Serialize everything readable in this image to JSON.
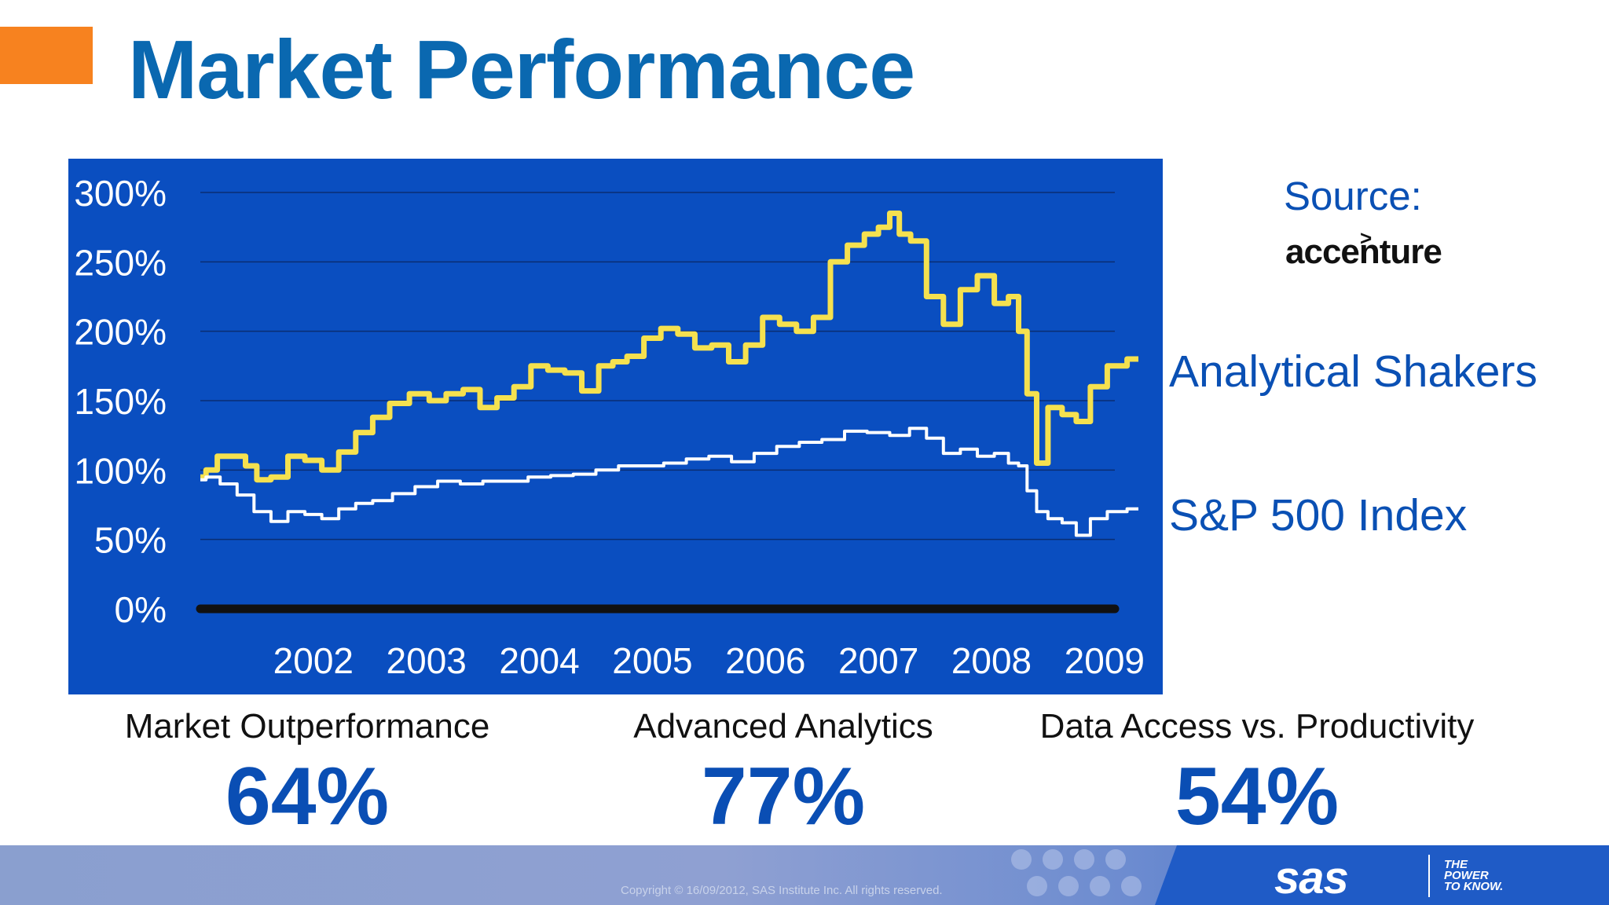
{
  "slide": {
    "title": "Market Performance",
    "source_label": "Source:",
    "source_logo": "accenture",
    "source_logo_mark": ">",
    "copyright": "Copyright © 16/09/2012, SAS Institute Inc. All rights reserved.",
    "brand": "sas",
    "tagline": [
      "THE",
      "POWER",
      "TO KNOW."
    ],
    "accent_color": "#f7821f",
    "title_color": "#0a68b0",
    "panel_color": "#0a4ec0"
  },
  "series_labels": {
    "analytical": "Analytical Shakers",
    "sp500": "S&P 500 Index"
  },
  "stats": [
    {
      "label": "Market Outperformance",
      "value": "64%"
    },
    {
      "label": "Advanced Analytics",
      "value": "77%"
    },
    {
      "label": "Data Access vs. Productivity",
      "value": "54%"
    }
  ],
  "chart_data": {
    "type": "line",
    "ylim": [
      0,
      300
    ],
    "xlim": [
      2001.5,
      2009.8
    ],
    "grid": true,
    "y_ticks": [
      "0%",
      "50%",
      "100%",
      "150%",
      "200%",
      "250%",
      "300%"
    ],
    "y_tick_values": [
      0,
      50,
      100,
      150,
      200,
      250,
      300
    ],
    "x_ticks": [
      "2002",
      "2003",
      "2004",
      "2005",
      "2006",
      "2007",
      "2008",
      "2009"
    ],
    "x_tick_values": [
      2002,
      2003,
      2004,
      2005,
      2006,
      2007,
      2008,
      2009
    ],
    "series": [
      {
        "name": "Analytical Shakers",
        "color": "#f5e14f",
        "x": [
          2001.5,
          2001.6,
          2001.7,
          2001.85,
          2001.95,
          2002.05,
          2002.2,
          2002.35,
          2002.5,
          2002.65,
          2002.8,
          2002.95,
          2003.1,
          2003.25,
          2003.45,
          2003.6,
          2003.75,
          2003.9,
          2004.05,
          2004.2,
          2004.35,
          2004.5,
          2004.65,
          2004.8,
          2004.95,
          2005.1,
          2005.2,
          2005.35,
          2005.5,
          2005.65,
          2005.8,
          2005.95,
          2006.1,
          2006.25,
          2006.4,
          2006.55,
          2006.7,
          2006.85,
          2007.0,
          2007.15,
          2007.3,
          2007.45,
          2007.55,
          2007.65,
          2007.72,
          2007.85,
          2008.0,
          2008.15,
          2008.3,
          2008.45,
          2008.6,
          2008.7,
          2008.78,
          2008.85,
          2008.95,
          2009.05,
          2009.2,
          2009.3,
          2009.45,
          2009.6,
          2009.8
        ],
        "values": [
          95,
          100,
          110,
          110,
          103,
          93,
          95,
          110,
          107,
          100,
          113,
          127,
          138,
          148,
          155,
          150,
          155,
          158,
          145,
          152,
          160,
          175,
          172,
          170,
          157,
          175,
          178,
          182,
          195,
          202,
          198,
          188,
          190,
          178,
          190,
          210,
          205,
          200,
          210,
          250,
          262,
          270,
          275,
          285,
          270,
          265,
          225,
          205,
          230,
          240,
          220,
          225,
          200,
          155,
          105,
          145,
          140,
          135,
          160,
          175,
          180
        ]
      },
      {
        "name": "S&P 500 Index",
        "color": "#ffffff",
        "x": [
          2001.5,
          2001.6,
          2001.75,
          2001.9,
          2002.05,
          2002.2,
          2002.35,
          2002.5,
          2002.65,
          2002.8,
          2002.95,
          2003.1,
          2003.3,
          2003.5,
          2003.7,
          2003.9,
          2004.1,
          2004.3,
          2004.5,
          2004.7,
          2004.9,
          2005.1,
          2005.3,
          2005.5,
          2005.7,
          2005.9,
          2006.1,
          2006.3,
          2006.5,
          2006.7,
          2006.9,
          2007.1,
          2007.3,
          2007.5,
          2007.7,
          2007.85,
          2008.0,
          2008.15,
          2008.3,
          2008.45,
          2008.6,
          2008.7,
          2008.78,
          2008.85,
          2008.95,
          2009.05,
          2009.2,
          2009.3,
          2009.45,
          2009.6,
          2009.8
        ],
        "values": [
          93,
          95,
          90,
          82,
          70,
          63,
          70,
          68,
          65,
          72,
          76,
          78,
          83,
          88,
          92,
          90,
          92,
          92,
          95,
          96,
          97,
          100,
          103,
          103,
          105,
          108,
          110,
          106,
          112,
          117,
          120,
          122,
          128,
          127,
          125,
          130,
          123,
          112,
          115,
          110,
          112,
          105,
          103,
          85,
          70,
          65,
          62,
          53,
          65,
          70,
          72
        ]
      }
    ]
  }
}
